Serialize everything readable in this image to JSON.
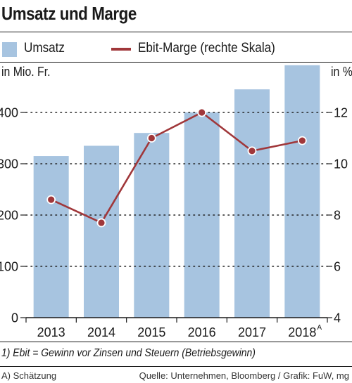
{
  "chart_data": {
    "type": "bar",
    "title": "Umsatz und Marge",
    "categories": [
      "2013",
      "2014",
      "2015",
      "2016",
      "2017",
      "2018"
    ],
    "category_marks": [
      "",
      "",
      "",
      "",
      "",
      "A"
    ],
    "series": [
      {
        "name": "Umsatz",
        "type": "bar",
        "axis": "left",
        "color": "#a7c4e0",
        "values": [
          315,
          335,
          360,
          400,
          445,
          492
        ]
      },
      {
        "name": "Ebit-Marge (rechte Skala)",
        "type": "line",
        "axis": "right",
        "color": "#a0373a",
        "values": [
          8.6,
          7.7,
          11.0,
          12.0,
          10.5,
          10.9
        ]
      }
    ],
    "ylabel_left": "in Mio. Fr.",
    "ylabel_right": "in %",
    "ylim_left": [
      0,
      500
    ],
    "ylim_right": [
      4,
      14
    ],
    "yticks_left": [
      "0",
      "100",
      "200",
      "300",
      "400"
    ],
    "yticks_right": [
      "4",
      "6",
      "8",
      "10",
      "12"
    ],
    "grid": "dotted horizontal",
    "legend_position": "top",
    "footnote": "1) Ebit = Gewinn vor Zinsen und Steuern (Betriebsgewinn)",
    "note": "A) Schätzung",
    "source": "Quelle: Unternehmen, Bloomberg / Grafik: FuW, mg"
  }
}
